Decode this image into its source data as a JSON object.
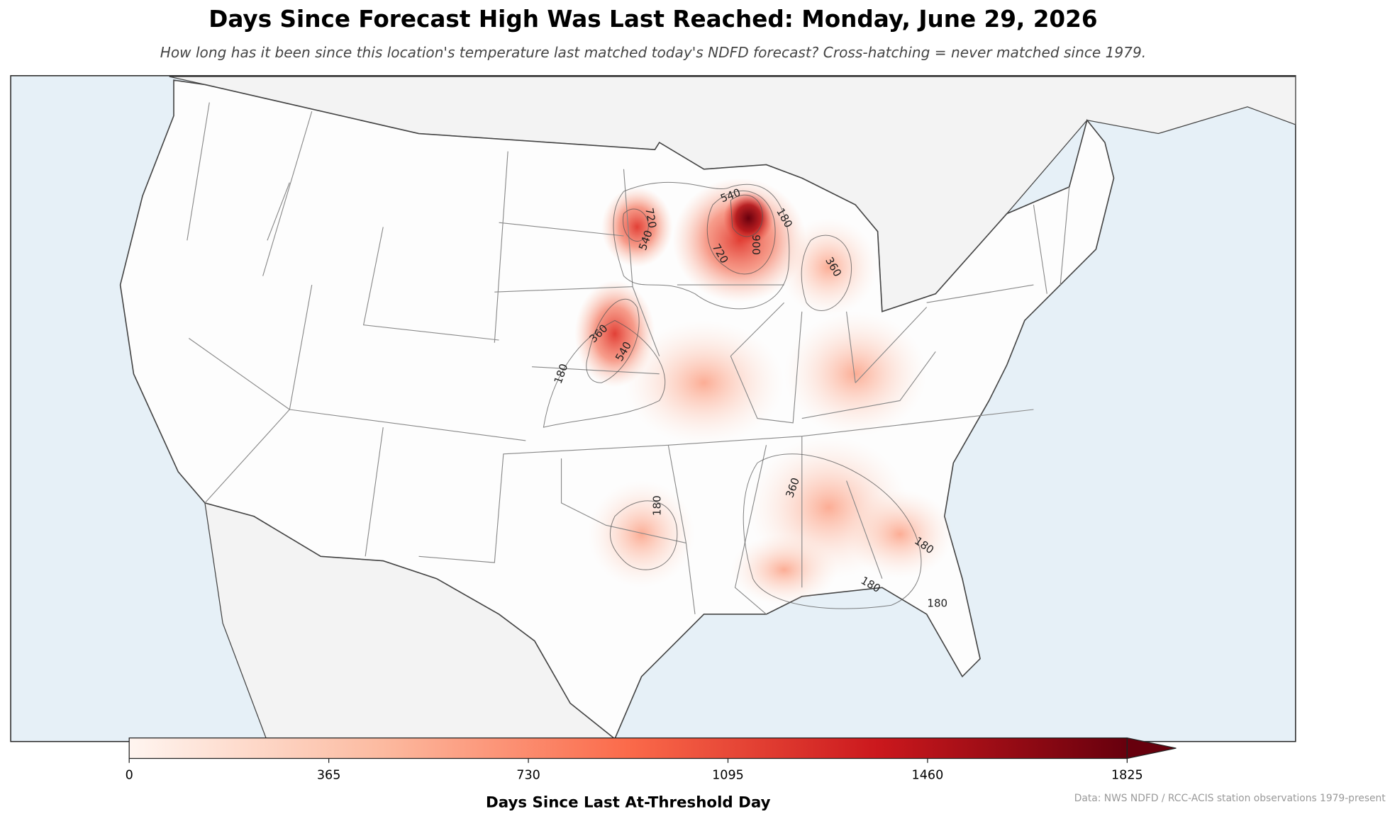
{
  "title": "Days Since Forecast High Was Last Reached: Monday, June 29, 2026",
  "subtitle": "How long has it been since this location's temperature last matched today's NDFD forecast? Cross-hatching = never matched since 1979.",
  "colorbar": {
    "label": "Days Since Last At-Threshold Day",
    "lim": [
      0,
      1825
    ],
    "ticks": [
      0,
      365,
      730,
      1095,
      1460,
      1825
    ],
    "colors": [
      "#fff5f0",
      "#fcbba1",
      "#fb6a4a",
      "#cb181d",
      "#67000d"
    ]
  },
  "contour_labels": [
    720,
    540,
    540,
    180,
    900,
    720,
    360,
    360,
    540,
    180,
    360,
    180,
    180,
    180,
    180
  ],
  "source": "Data: NWS NDFD / RCC-ACIS station observations 1979-present"
}
